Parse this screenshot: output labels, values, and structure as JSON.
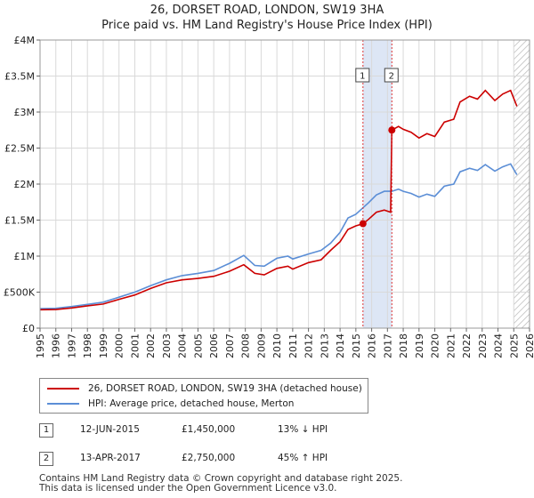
{
  "title_line1": "26, DORSET ROAD, LONDON, SW19 3HA",
  "title_line2": "Price paid vs. HM Land Registry's House Price Index (HPI)",
  "colors": {
    "property": "#cc0000",
    "hpi": "#5b8ed6",
    "shade": "#dde6f5",
    "marker_line": "#dd3333"
  },
  "chart_data": {
    "type": "line",
    "xlim": [
      1995,
      2026
    ],
    "ylim": [
      0,
      4000000
    ],
    "y_ticks": [
      {
        "value": 0,
        "label": "£0"
      },
      {
        "value": 500000,
        "label": "£500K"
      },
      {
        "value": 1000000,
        "label": "£1M"
      },
      {
        "value": 1500000,
        "label": "£1.5M"
      },
      {
        "value": 2000000,
        "label": "£2M"
      },
      {
        "value": 2500000,
        "label": "£2.5M"
      },
      {
        "value": 3000000,
        "label": "£3M"
      },
      {
        "value": 3500000,
        "label": "£3.5M"
      },
      {
        "value": 4000000,
        "label": "£4M"
      }
    ],
    "x_ticks": [
      "1995",
      "1996",
      "1997",
      "1998",
      "1999",
      "2000",
      "2001",
      "2002",
      "2003",
      "2004",
      "2005",
      "2006",
      "2007",
      "2008",
      "2009",
      "2010",
      "2011",
      "2012",
      "2013",
      "2014",
      "2015",
      "2016",
      "2017",
      "2018",
      "2019",
      "2020",
      "2021",
      "2022",
      "2023",
      "2024",
      "2025",
      "2026"
    ],
    "shaded_period": [
      2015.45,
      2017.28
    ],
    "hatched_from": 2025.0,
    "series": [
      {
        "name": "26, DORSET ROAD, LONDON, SW19 3HA (detached house)",
        "color": "#cc0000",
        "points": [
          [
            1995,
            255000
          ],
          [
            1996,
            258000
          ],
          [
            1997,
            280000
          ],
          [
            1998,
            310000
          ],
          [
            1999,
            335000
          ],
          [
            2000,
            400000
          ],
          [
            2001,
            460000
          ],
          [
            2002,
            550000
          ],
          [
            2003,
            630000
          ],
          [
            2004,
            670000
          ],
          [
            2005,
            690000
          ],
          [
            2006,
            720000
          ],
          [
            2007,
            790000
          ],
          [
            2007.9,
            880000
          ],
          [
            2008.6,
            760000
          ],
          [
            2009.2,
            740000
          ],
          [
            2010,
            830000
          ],
          [
            2010.7,
            860000
          ],
          [
            2011,
            820000
          ],
          [
            2012,
            910000
          ],
          [
            2012.8,
            950000
          ],
          [
            2013.4,
            1080000
          ],
          [
            2014,
            1200000
          ],
          [
            2014.5,
            1370000
          ],
          [
            2015.0,
            1420000
          ],
          [
            2015.45,
            1450000
          ],
          [
            2015.8,
            1510000
          ],
          [
            2016.3,
            1610000
          ],
          [
            2016.8,
            1640000
          ],
          [
            2017.2,
            1610000
          ],
          [
            2017.28,
            2750000
          ],
          [
            2017.7,
            2800000
          ],
          [
            2018.0,
            2760000
          ],
          [
            2018.5,
            2720000
          ],
          [
            2019.0,
            2640000
          ],
          [
            2019.5,
            2700000
          ],
          [
            2020.0,
            2660000
          ],
          [
            2020.6,
            2860000
          ],
          [
            2021.2,
            2900000
          ],
          [
            2021.6,
            3140000
          ],
          [
            2022.2,
            3220000
          ],
          [
            2022.7,
            3180000
          ],
          [
            2023.2,
            3300000
          ],
          [
            2023.8,
            3160000
          ],
          [
            2024.3,
            3250000
          ],
          [
            2024.8,
            3300000
          ],
          [
            2025.2,
            3080000
          ]
        ]
      },
      {
        "name": "HPI: Average price, detached house, Merton",
        "color": "#5b8ed6",
        "points": [
          [
            1995,
            270000
          ],
          [
            1996,
            275000
          ],
          [
            1997,
            300000
          ],
          [
            1998,
            330000
          ],
          [
            1999,
            360000
          ],
          [
            2000,
            430000
          ],
          [
            2001,
            500000
          ],
          [
            2002,
            590000
          ],
          [
            2003,
            670000
          ],
          [
            2004,
            730000
          ],
          [
            2005,
            760000
          ],
          [
            2006,
            800000
          ],
          [
            2007,
            900000
          ],
          [
            2007.9,
            1010000
          ],
          [
            2008.6,
            870000
          ],
          [
            2009.2,
            860000
          ],
          [
            2010,
            970000
          ],
          [
            2010.7,
            1000000
          ],
          [
            2011,
            960000
          ],
          [
            2012,
            1030000
          ],
          [
            2012.8,
            1080000
          ],
          [
            2013.4,
            1180000
          ],
          [
            2014,
            1330000
          ],
          [
            2014.5,
            1530000
          ],
          [
            2015.0,
            1580000
          ],
          [
            2015.45,
            1670000
          ],
          [
            2015.8,
            1740000
          ],
          [
            2016.3,
            1850000
          ],
          [
            2016.8,
            1900000
          ],
          [
            2017.28,
            1900000
          ],
          [
            2017.7,
            1930000
          ],
          [
            2018.0,
            1900000
          ],
          [
            2018.5,
            1870000
          ],
          [
            2019.0,
            1820000
          ],
          [
            2019.5,
            1860000
          ],
          [
            2020.0,
            1830000
          ],
          [
            2020.6,
            1970000
          ],
          [
            2021.2,
            2000000
          ],
          [
            2021.6,
            2170000
          ],
          [
            2022.2,
            2220000
          ],
          [
            2022.7,
            2190000
          ],
          [
            2023.2,
            2270000
          ],
          [
            2023.8,
            2180000
          ],
          [
            2024.3,
            2240000
          ],
          [
            2024.8,
            2280000
          ],
          [
            2025.2,
            2130000
          ]
        ]
      }
    ],
    "sales": [
      {
        "id": "1",
        "x": 2015.45,
        "y": 1450000
      },
      {
        "id": "2",
        "x": 2017.28,
        "y": 2750000
      }
    ]
  },
  "legend": [
    {
      "label": "26, DORSET ROAD, LONDON, SW19 3HA (detached house)",
      "color": "#cc0000"
    },
    {
      "label": "HPI: Average price, detached house, Merton",
      "color": "#5b8ed6"
    }
  ],
  "transactions": [
    {
      "id": "1",
      "date": "12-JUN-2015",
      "price": "£1,450,000",
      "hpi": "13% ↓ HPI"
    },
    {
      "id": "2",
      "date": "13-APR-2017",
      "price": "£2,750,000",
      "hpi": "45% ↑ HPI"
    }
  ],
  "footer_line1": "Contains HM Land Registry data © Crown copyright and database right 2025.",
  "footer_line2": "This data is licensed under the Open Government Licence v3.0."
}
